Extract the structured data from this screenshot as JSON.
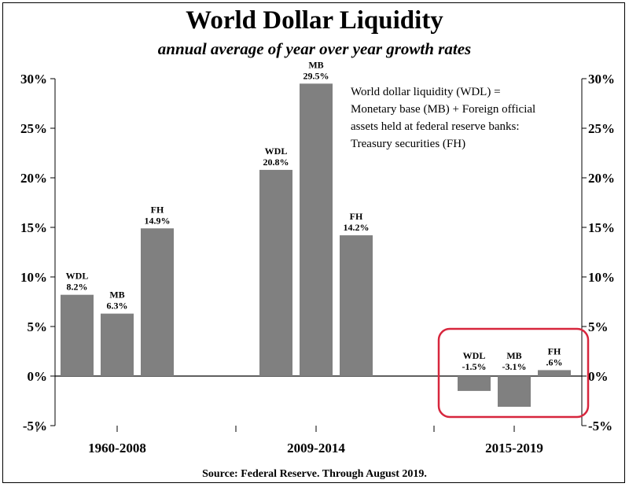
{
  "title": "World Dollar Liquidity",
  "subtitle": "annual average of year over year growth rates",
  "source": "Source: Federal Reserve. Through August 2019.",
  "note_lines": [
    "World dollar liquidity (WDL) =",
    "Monetary base (MB) + Foreign official",
    "assets held at federal reserve banks:",
    "Treasury securities (FH)"
  ],
  "colors": {
    "bar": "#808080",
    "highlight": "#d7263d",
    "axis": "#000000"
  },
  "chart_data": {
    "type": "bar",
    "ylim": [
      -5,
      30
    ],
    "y_ticks": [
      -5,
      0,
      5,
      10,
      15,
      20,
      25,
      30
    ],
    "y_tick_labels": [
      "-5%",
      "0%",
      "5%",
      "10%",
      "15%",
      "20%",
      "25%",
      "30%"
    ],
    "y_axes": "left and right",
    "grid": false,
    "groups": [
      {
        "label": "1960-2008",
        "bars": [
          {
            "name": "WDL",
            "value": 8.2,
            "label": "8.2%"
          },
          {
            "name": "MB",
            "value": 6.3,
            "label": "6.3%"
          },
          {
            "name": "FH",
            "value": 14.9,
            "label": "14.9%"
          }
        ]
      },
      {
        "label": "2009-2014",
        "bars": [
          {
            "name": "WDL",
            "value": 20.8,
            "label": "20.8%"
          },
          {
            "name": "MB",
            "value": 29.5,
            "label": "29.5%"
          },
          {
            "name": "FH",
            "value": 14.2,
            "label": "14.2%"
          }
        ]
      },
      {
        "label": "2015-2019",
        "highlighted": true,
        "bars": [
          {
            "name": "WDL",
            "value": -1.5,
            "label": "-1.5%"
          },
          {
            "name": "MB",
            "value": -3.1,
            "label": "-3.1%"
          },
          {
            "name": "FH",
            "value": 0.6,
            "label": ".6%"
          }
        ]
      }
    ]
  }
}
